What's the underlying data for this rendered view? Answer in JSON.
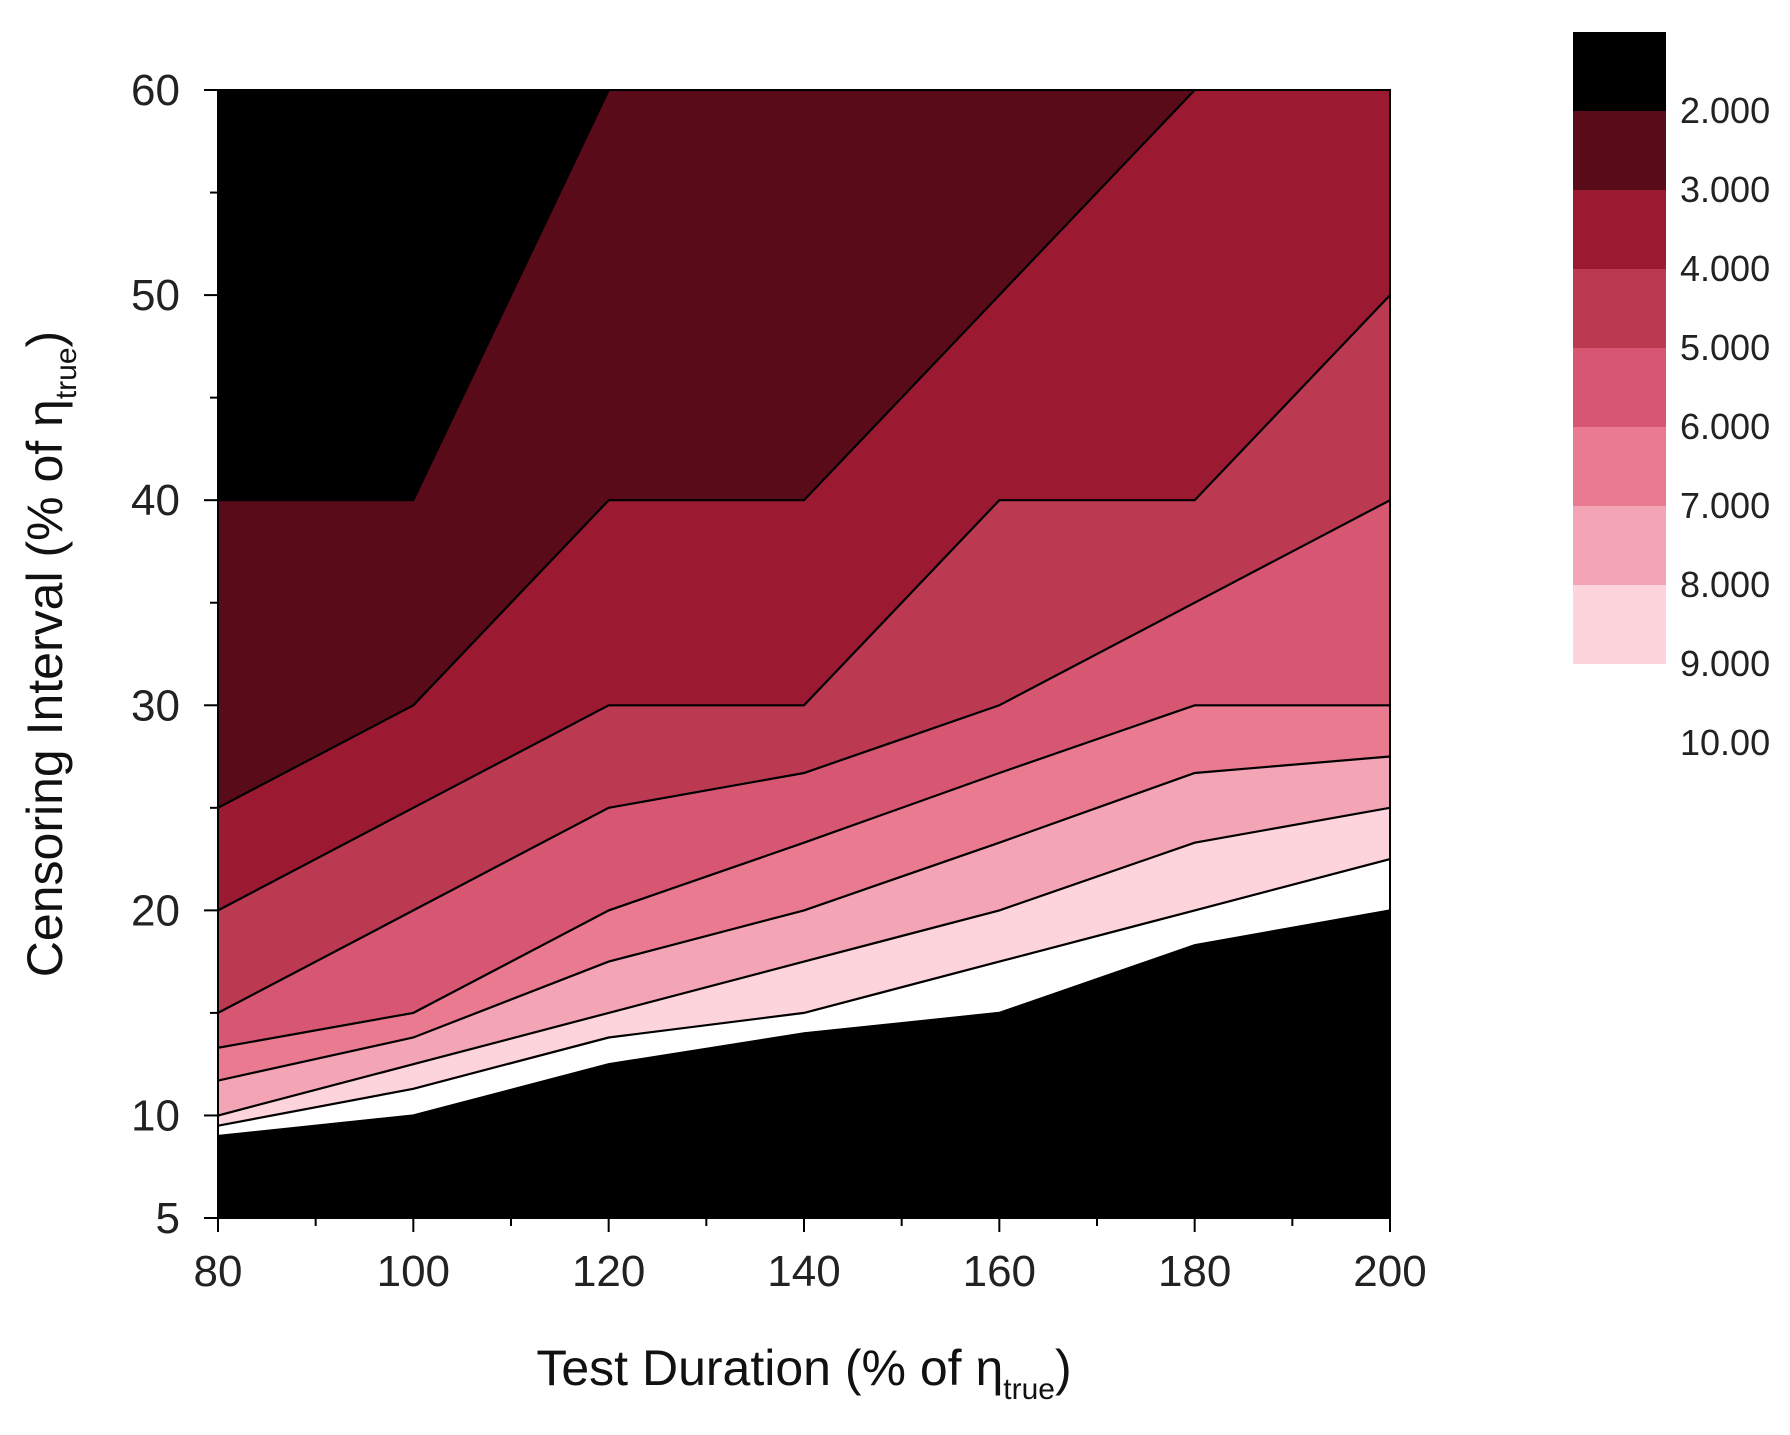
{
  "chart_data": {
    "type": "contour",
    "xlabel": {
      "main": "Test Duration (% of ",
      "symbol": "η",
      "sub": "true",
      "close": ")"
    },
    "ylabel": {
      "main": "Censoring Interval (% of ",
      "symbol": "η",
      "sub": "true",
      "close": ")"
    },
    "xlim": [
      80,
      200
    ],
    "ylim": [
      5,
      60
    ],
    "x_ticks": [
      80,
      100,
      120,
      140,
      160,
      180,
      200
    ],
    "y_ticks": [
      5,
      10,
      20,
      30,
      40,
      50,
      60
    ],
    "x_tick_labels": [
      "80",
      "100",
      "120",
      "140",
      "160",
      "180",
      "200"
    ],
    "y_tick_labels": [
      "5",
      "10",
      "20",
      "30",
      "40",
      "50",
      "60"
    ],
    "grid": false,
    "legend_placement": "right",
    "levels": [
      2,
      3,
      4,
      5,
      6,
      7,
      8,
      9,
      10
    ],
    "legend_labels": [
      "2.000",
      "3.000",
      "4.000",
      "5.000",
      "6.000",
      "7.000",
      "8.000",
      "9.000",
      "10.00"
    ],
    "band_colors": [
      "#000000",
      "#5a0b19",
      "#9b1a32",
      "#bb3a52",
      "#d75772",
      "#e97a8f",
      "#f3a5b5",
      "#fdd3dc",
      "#ffffff"
    ],
    "contour_lines": [
      {
        "level": 2,
        "points": [
          [
            80,
            40
          ],
          [
            100,
            40
          ],
          [
            120,
            60
          ]
        ]
      },
      {
        "level": 3,
        "points": [
          [
            80,
            25
          ],
          [
            100,
            30
          ],
          [
            120,
            40
          ],
          [
            140,
            40
          ],
          [
            160,
            50
          ],
          [
            180,
            60
          ]
        ]
      },
      {
        "level": 4,
        "points": [
          [
            80,
            20
          ],
          [
            100,
            25
          ],
          [
            120,
            30
          ],
          [
            140,
            30
          ],
          [
            160,
            40
          ],
          [
            180,
            40
          ],
          [
            200,
            50
          ]
        ]
      },
      {
        "level": 5,
        "points": [
          [
            80,
            15
          ],
          [
            100,
            20
          ],
          [
            120,
            25
          ],
          [
            140,
            26.7
          ],
          [
            160,
            30
          ],
          [
            180,
            35
          ],
          [
            200,
            40
          ]
        ]
      },
      {
        "level": 6,
        "points": [
          [
            80,
            13.3
          ],
          [
            100,
            15
          ],
          [
            120,
            20
          ],
          [
            140,
            23.3
          ],
          [
            160,
            26.7
          ],
          [
            180,
            30
          ],
          [
            200,
            30
          ]
        ]
      },
      {
        "level": 7,
        "points": [
          [
            80,
            11.7
          ],
          [
            100,
            13.8
          ],
          [
            120,
            17.5
          ],
          [
            140,
            20
          ],
          [
            160,
            23.3
          ],
          [
            180,
            26.7
          ],
          [
            200,
            27.5
          ]
        ]
      },
      {
        "level": 8,
        "points": [
          [
            80,
            10
          ],
          [
            100,
            12.5
          ],
          [
            120,
            15
          ],
          [
            140,
            17.5
          ],
          [
            160,
            20
          ],
          [
            180,
            23.3
          ],
          [
            200,
            25
          ]
        ]
      },
      {
        "level": 9,
        "points": [
          [
            80,
            9.5
          ],
          [
            100,
            11.3
          ],
          [
            120,
            13.8
          ],
          [
            140,
            15
          ],
          [
            160,
            17.5
          ],
          [
            180,
            20
          ],
          [
            200,
            22.5
          ]
        ]
      },
      {
        "level": 10,
        "points": [
          [
            80,
            9
          ],
          [
            100,
            10
          ],
          [
            120,
            12.5
          ],
          [
            140,
            14
          ],
          [
            160,
            15
          ],
          [
            180,
            18.3
          ],
          [
            200,
            20
          ]
        ]
      }
    ]
  }
}
